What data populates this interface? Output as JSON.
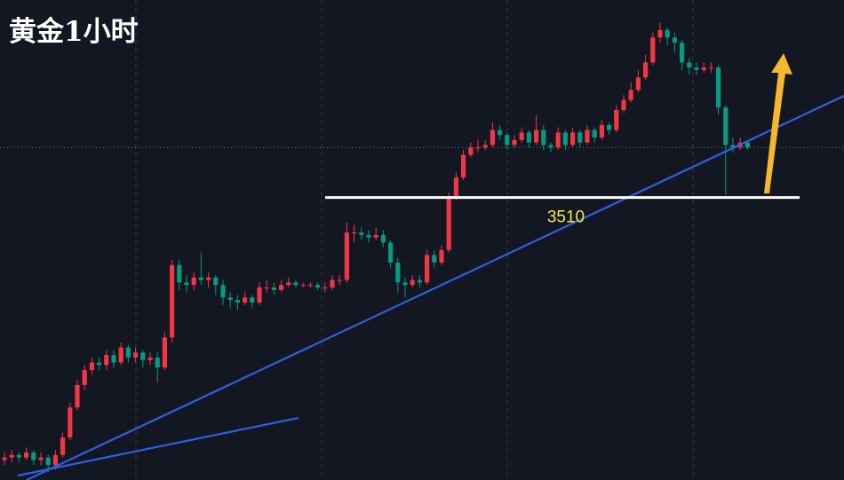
{
  "chart_data": {
    "type": "candlestick",
    "title": "黄金1小时",
    "ylim": [
      3397,
      3589
    ],
    "up_color": "#f23645",
    "down_color": "#089981",
    "level": 3510,
    "level_color": "#ffffff",
    "level_label_color": "#f5e94a",
    "last_price": 3530,
    "last_price_color": "#1aa37a",
    "ohlc": [
      [
        3405,
        3408,
        3403,
        3406
      ],
      [
        3406,
        3409,
        3404,
        3407
      ],
      [
        3407,
        3408,
        3404,
        3406
      ],
      [
        3406,
        3410,
        3405,
        3408
      ],
      [
        3408,
        3409,
        3403,
        3405
      ],
      [
        3405,
        3408,
        3403,
        3406
      ],
      [
        3406,
        3407,
        3400,
        3403
      ],
      [
        3403,
        3409,
        3401,
        3407
      ],
      [
        3407,
        3416,
        3406,
        3414
      ],
      [
        3414,
        3428,
        3413,
        3426
      ],
      [
        3426,
        3437,
        3425,
        3435
      ],
      [
        3435,
        3443,
        3433,
        3441
      ],
      [
        3441,
        3446,
        3439,
        3444
      ],
      [
        3444,
        3446,
        3441,
        3443
      ],
      [
        3443,
        3449,
        3441,
        3447
      ],
      [
        3447,
        3449,
        3442,
        3444
      ],
      [
        3444,
        3452,
        3443,
        3450
      ],
      [
        3450,
        3451,
        3444,
        3446
      ],
      [
        3446,
        3450,
        3444,
        3448
      ],
      [
        3448,
        3449,
        3442,
        3445
      ],
      [
        3445,
        3448,
        3443,
        3446
      ],
      [
        3446,
        3448,
        3436,
        3442
      ],
      [
        3442,
        3456,
        3441,
        3454
      ],
      [
        3454,
        3485,
        3452,
        3483
      ],
      [
        3483,
        3485,
        3473,
        3476
      ],
      [
        3476,
        3479,
        3472,
        3475
      ],
      [
        3475,
        3480,
        3473,
        3478
      ],
      [
        3478,
        3488,
        3475,
        3477
      ],
      [
        3477,
        3480,
        3474,
        3478
      ],
      [
        3478,
        3479,
        3471,
        3475
      ],
      [
        3475,
        3477,
        3467,
        3470
      ],
      [
        3470,
        3472,
        3466,
        3469
      ],
      [
        3469,
        3471,
        3465,
        3468
      ],
      [
        3468,
        3472,
        3467,
        3470
      ],
      [
        3470,
        3471,
        3466,
        3468
      ],
      [
        3468,
        3476,
        3467,
        3474
      ],
      [
        3474,
        3477,
        3472,
        3474
      ],
      [
        3474,
        3476,
        3471,
        3473
      ],
      [
        3473,
        3477,
        3472,
        3475
      ],
      [
        3475,
        3478,
        3474,
        3476
      ],
      [
        3476,
        3477,
        3474,
        3475
      ],
      [
        3475,
        3476,
        3474,
        3475
      ],
      [
        3475,
        3476,
        3474,
        3475
      ],
      [
        3475,
        3476,
        3473,
        3474
      ],
      [
        3474,
        3476,
        3472,
        3474
      ],
      [
        3474,
        3479,
        3473,
        3477
      ],
      [
        3477,
        3479,
        3475,
        3477
      ],
      [
        3477,
        3500,
        3476,
        3496
      ],
      [
        3496,
        3499,
        3492,
        3496
      ],
      [
        3496,
        3498,
        3493,
        3495
      ],
      [
        3495,
        3497,
        3492,
        3494
      ],
      [
        3494,
        3498,
        3493,
        3495
      ],
      [
        3495,
        3497,
        3490,
        3492
      ],
      [
        3492,
        3493,
        3482,
        3484
      ],
      [
        3484,
        3486,
        3472,
        3476
      ],
      [
        3476,
        3478,
        3470,
        3475
      ],
      [
        3475,
        3479,
        3474,
        3477
      ],
      [
        3477,
        3479,
        3474,
        3476
      ],
      [
        3476,
        3489,
        3475,
        3487
      ],
      [
        3487,
        3489,
        3482,
        3484
      ],
      [
        3484,
        3491,
        3483,
        3489
      ],
      [
        3489,
        3512,
        3488,
        3510
      ],
      [
        3510,
        3520,
        3509,
        3518
      ],
      [
        3518,
        3529,
        3517,
        3527
      ],
      [
        3527,
        3532,
        3526,
        3530
      ],
      [
        3530,
        3533,
        3528,
        3530
      ],
      [
        3530,
        3533,
        3529,
        3531
      ],
      [
        3531,
        3540,
        3530,
        3537
      ],
      [
        3537,
        3539,
        3533,
        3535
      ],
      [
        3535,
        3536,
        3529,
        3531
      ],
      [
        3531,
        3535,
        3530,
        3533
      ],
      [
        3533,
        3538,
        3532,
        3536
      ],
      [
        3536,
        3537,
        3530,
        3532
      ],
      [
        3532,
        3543,
        3531,
        3537
      ],
      [
        3537,
        3539,
        3529,
        3531
      ],
      [
        3531,
        3532,
        3528,
        3530
      ],
      [
        3530,
        3538,
        3529,
        3536
      ],
      [
        3536,
        3537,
        3529,
        3531
      ],
      [
        3531,
        3538,
        3530,
        3536
      ],
      [
        3536,
        3537,
        3530,
        3532
      ],
      [
        3532,
        3539,
        3531,
        3537
      ],
      [
        3537,
        3538,
        3532,
        3534
      ],
      [
        3534,
        3541,
        3533,
        3539
      ],
      [
        3539,
        3540,
        3535,
        3537
      ],
      [
        3537,
        3547,
        3536,
        3545
      ],
      [
        3545,
        3551,
        3544,
        3549
      ],
      [
        3549,
        3556,
        3548,
        3553
      ],
      [
        3553,
        3561,
        3552,
        3558
      ],
      [
        3558,
        3567,
        3557,
        3564
      ],
      [
        3564,
        3576,
        3563,
        3574
      ],
      [
        3574,
        3580,
        3572,
        3577
      ],
      [
        3577,
        3578,
        3571,
        3574
      ],
      [
        3574,
        3576,
        3568,
        3572
      ],
      [
        3572,
        3573,
        3561,
        3564
      ],
      [
        3564,
        3566,
        3559,
        3562
      ],
      [
        3562,
        3564,
        3559,
        3561
      ],
      [
        3561,
        3564,
        3560,
        3562
      ],
      [
        3562,
        3564,
        3560,
        3562
      ],
      [
        3562,
        3563,
        3543,
        3546
      ],
      [
        3546,
        3547,
        3511,
        3531
      ],
      [
        3531,
        3534,
        3528,
        3530
      ],
      [
        3530,
        3534,
        3529,
        3532
      ],
      [
        3532,
        3533,
        3529,
        3530
      ]
    ]
  }
}
